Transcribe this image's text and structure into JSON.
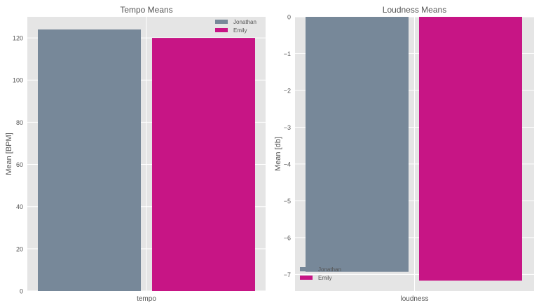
{
  "chart_data": [
    {
      "type": "bar",
      "title": "Tempo Means",
      "xlabel": "",
      "ylabel": "Mean [BPM]",
      "categories": [
        "tempo"
      ],
      "ylim": [
        0,
        130
      ],
      "yticks": [
        0,
        20,
        40,
        60,
        80,
        100,
        120
      ],
      "ytick_labels": [
        "0",
        "20",
        "40",
        "60",
        "80",
        "100",
        "120"
      ],
      "grid": true,
      "legend": "top-right",
      "series": [
        {
          "name": "Jonathan",
          "values": [
            124
          ],
          "color": "#778899"
        },
        {
          "name": "Emily",
          "values": [
            120
          ],
          "color": "#c71585"
        }
      ]
    },
    {
      "type": "bar",
      "title": "Loudness Means",
      "xlabel": "",
      "ylabel": "Mean [db]",
      "categories": [
        "loudness"
      ],
      "ylim": [
        -7.45,
        0
      ],
      "yticks": [
        -7,
        -6,
        -5,
        -4,
        -3,
        -2,
        -1,
        0
      ],
      "ytick_labels": [
        "−7",
        "−6",
        "−5",
        "−4",
        "−3",
        "−2",
        "−1",
        "0"
      ],
      "grid": true,
      "legend": "bottom-left",
      "series": [
        {
          "name": "Jonathan",
          "values": [
            -6.93
          ],
          "color": "#778899"
        },
        {
          "name": "Emily",
          "values": [
            -7.17
          ],
          "color": "#c71585"
        }
      ]
    }
  ]
}
